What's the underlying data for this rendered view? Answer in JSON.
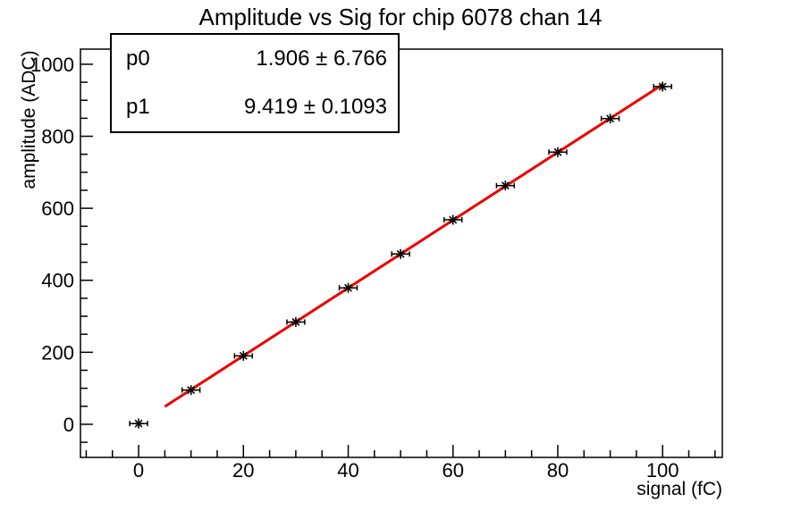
{
  "title": "Amplitude vs Sig for chip 6078 chan 14",
  "stats_box": {
    "rows": [
      {
        "label": "p0",
        "value": "1.906 ± 6.766"
      },
      {
        "label": "p1",
        "value": "9.419 ± 0.1093"
      }
    ]
  },
  "chart_data": {
    "type": "scatter",
    "title": "Amplitude vs Sig for chip 6078 chan 14",
    "xlabel": "signal (fC)",
    "ylabel": "amplitude (ADC)",
    "x": [
      0,
      10,
      20,
      30,
      40,
      50,
      60,
      70,
      80,
      90,
      100
    ],
    "y": [
      2,
      95,
      190,
      284,
      379,
      473,
      568,
      663,
      756,
      849,
      938
    ],
    "x_error": 1.7,
    "marker": "asterisk",
    "marker_color": "#000000",
    "fit": {
      "type": "linear",
      "p0": 1.906,
      "p0_err": 6.766,
      "p1": 9.419,
      "p1_err": 0.1093,
      "range": [
        5,
        100
      ],
      "color": "#ee0000"
    },
    "xlim": [
      -11.1,
      111.4
    ],
    "ylim": [
      -92,
      1042
    ],
    "x_major_ticks": [
      0,
      20,
      40,
      60,
      80,
      100
    ],
    "x_minor_step": 5,
    "y_major_ticks": [
      0,
      200,
      400,
      600,
      800,
      1000
    ],
    "y_minor_step": 50,
    "grid": false,
    "legend": "none",
    "frame_color": "#000000",
    "background_color": "#ffffff"
  }
}
